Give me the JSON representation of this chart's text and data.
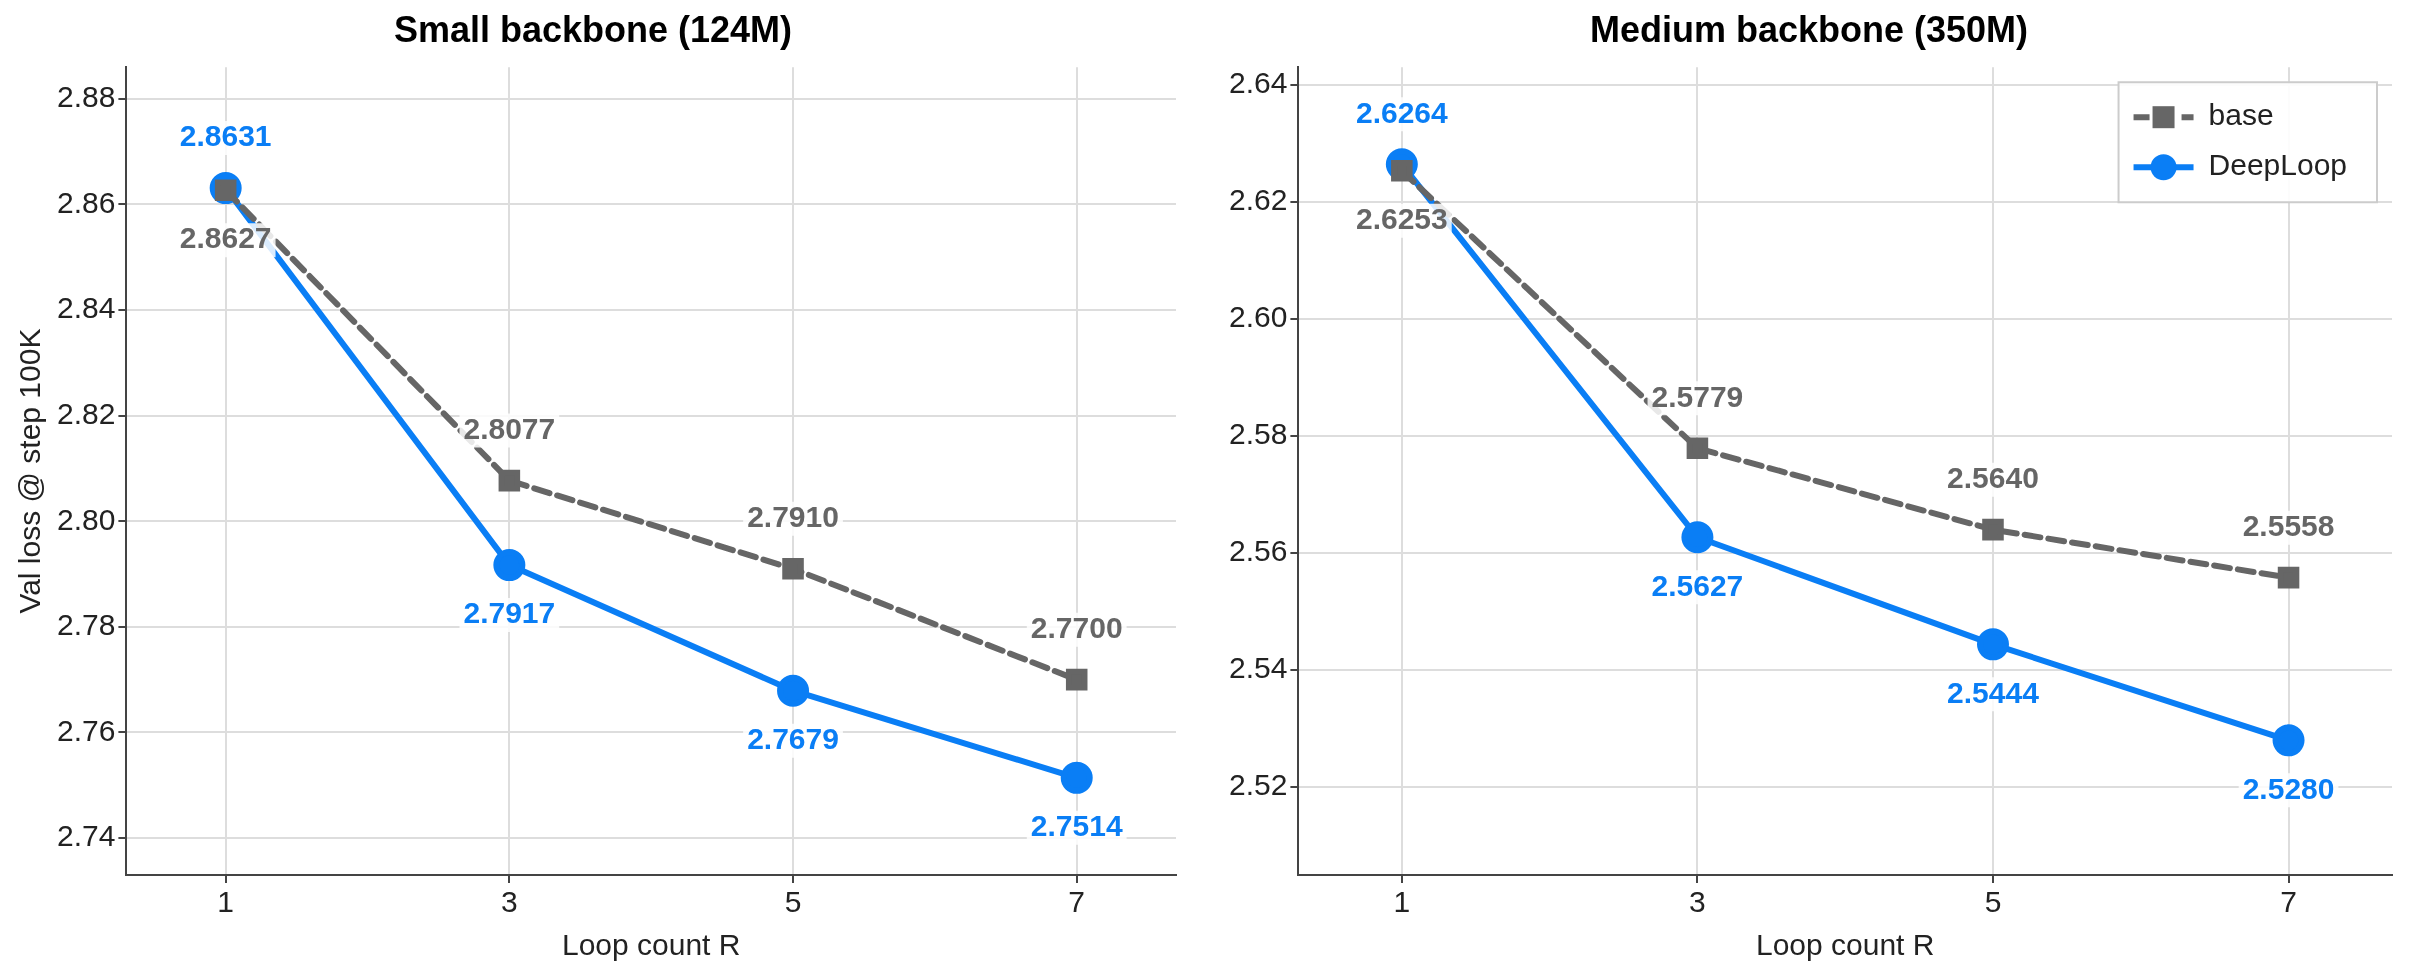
{
  "chart_data": [
    {
      "type": "line",
      "title": "Small backbone (124M)",
      "xlabel": "Loop count R",
      "ylabel": "Val loss @ step 100K",
      "x": [
        1,
        3,
        5,
        7
      ],
      "xlim": [
        0.3,
        7.7
      ],
      "xticks": [
        1,
        3,
        5,
        7
      ],
      "ylim": [
        2.733,
        2.886
      ],
      "yticks": [
        {
          "value": 2.74,
          "label": "2.74"
        },
        {
          "value": 2.76,
          "label": "2.76"
        },
        {
          "value": 2.78,
          "label": "2.78"
        },
        {
          "value": 2.8,
          "label": "2.80"
        },
        {
          "value": 2.82,
          "label": "2.82"
        },
        {
          "value": 2.84,
          "label": "2.84"
        },
        {
          "value": 2.86,
          "label": "2.86"
        },
        {
          "value": 2.88,
          "label": "2.88"
        }
      ],
      "grid": true,
      "legend": false,
      "series": [
        {
          "color": "#666666",
          "values": [
            2.8627,
            2.8077,
            2.791,
            2.77
          ],
          "value_labels": [
            "2.8627",
            "2.8077",
            "2.7910",
            "2.7700"
          ],
          "marker": "square",
          "line_style": "dashed"
        },
        {
          "color": "#0a7ef5",
          "values": [
            2.8631,
            2.7917,
            2.7679,
            2.7514
          ],
          "value_labels": [
            "2.8631",
            "2.7917",
            "2.7679",
            "2.7514"
          ],
          "marker": "circle",
          "line_style": "solid"
        }
      ]
    },
    {
      "type": "line",
      "title": "Medium backbone (350M)",
      "xlabel": "Loop count R",
      "x": [
        1,
        3,
        5,
        7
      ],
      "xlim": [
        0.3,
        7.7
      ],
      "xticks": [
        1,
        3,
        5,
        7
      ],
      "ylim": [
        2.505,
        2.643
      ],
      "yticks": [
        {
          "value": 2.52,
          "label": "2.52"
        },
        {
          "value": 2.54,
          "label": "2.54"
        },
        {
          "value": 2.56,
          "label": "2.56"
        },
        {
          "value": 2.58,
          "label": "2.58"
        },
        {
          "value": 2.6,
          "label": "2.60"
        },
        {
          "value": 2.62,
          "label": "2.62"
        },
        {
          "value": 2.64,
          "label": "2.64"
        }
      ],
      "grid": true,
      "legend": "top right",
      "series": [
        {
          "name": "base",
          "color": "#666666",
          "values": [
            2.6253,
            2.5779,
            2.564,
            2.5558
          ],
          "value_labels": [
            "2.6253",
            "2.5779",
            "2.5640",
            "2.5558"
          ],
          "marker": "square",
          "line_style": "dashed"
        },
        {
          "name": "DeepLoop",
          "color": "#0a7ef5",
          "values": [
            2.6264,
            2.5627,
            2.5444,
            2.528
          ],
          "value_labels": [
            "2.6264",
            "2.5627",
            "2.5444",
            "2.5280"
          ],
          "marker": "circle",
          "line_style": "solid"
        }
      ]
    }
  ]
}
